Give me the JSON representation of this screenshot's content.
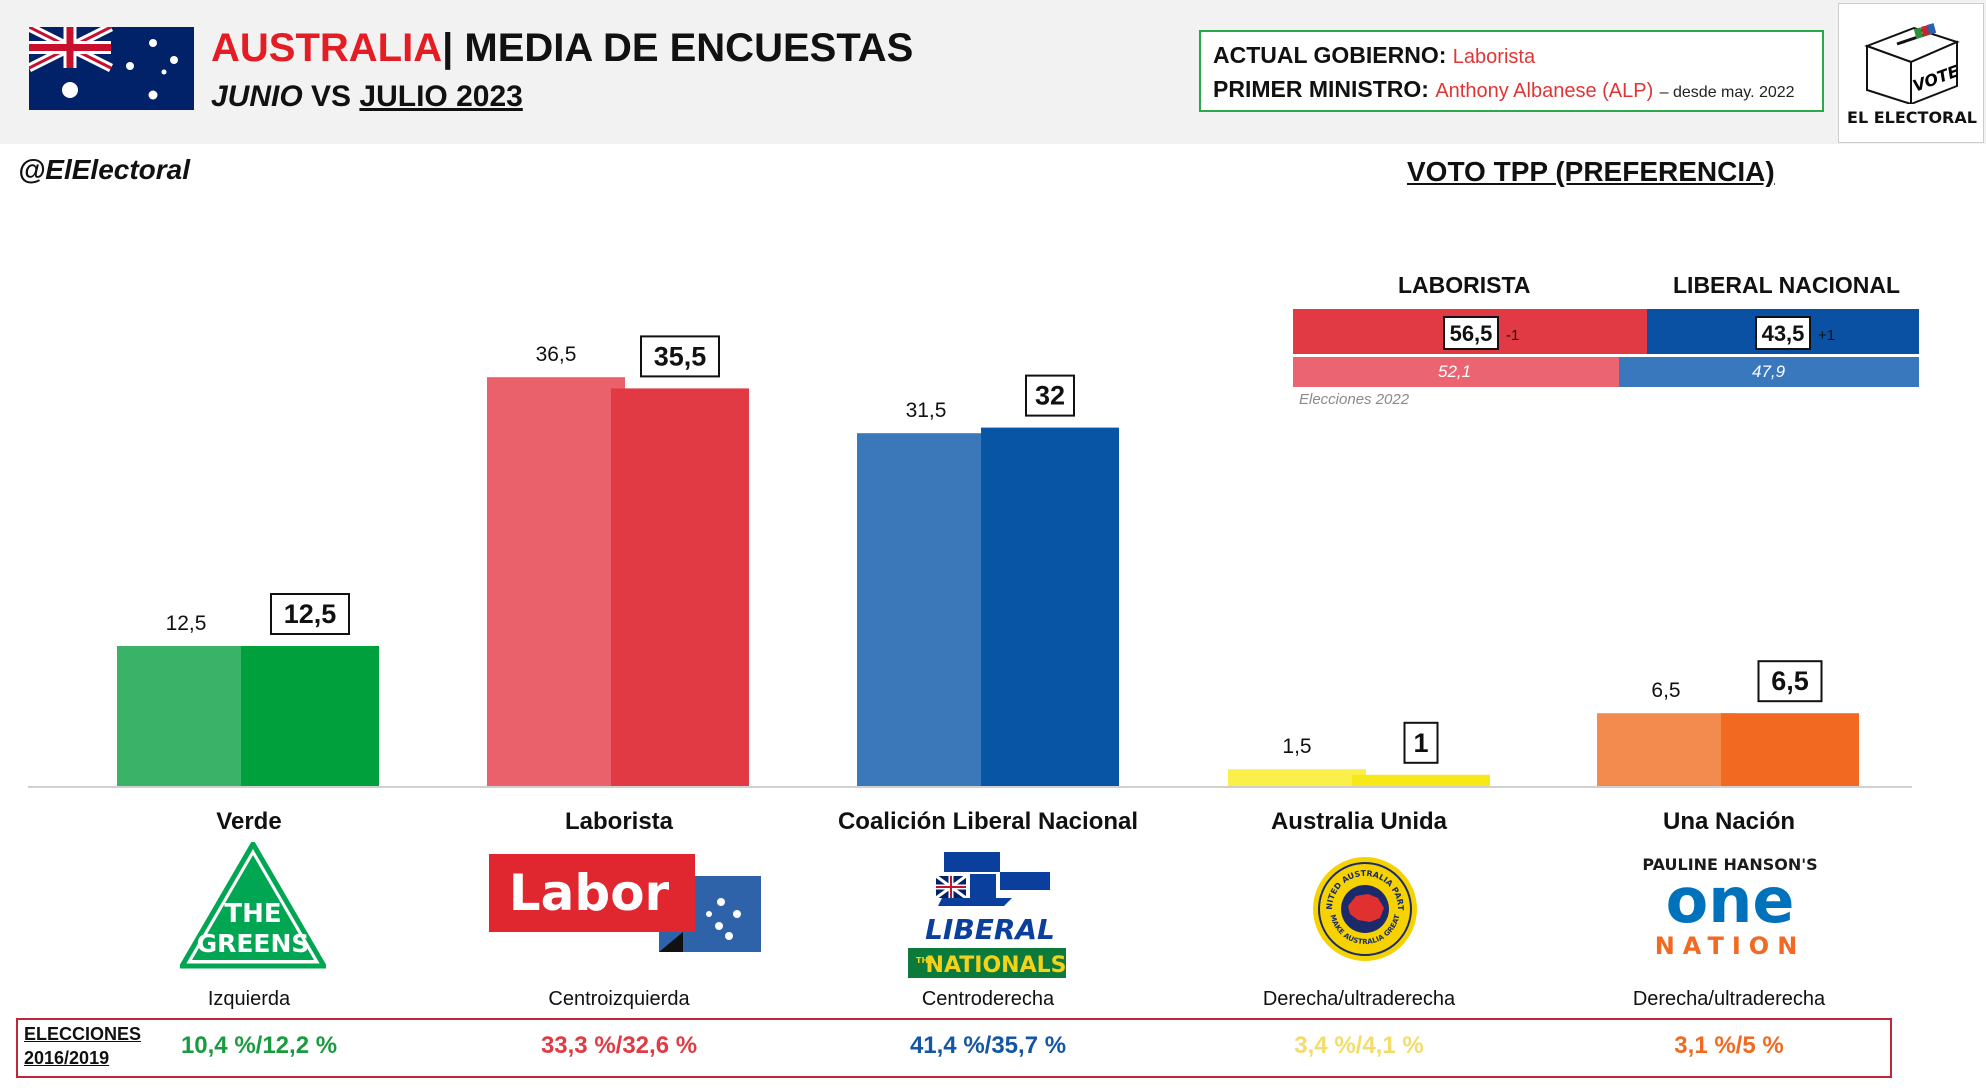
{
  "header": {
    "country": "AUSTRALIA",
    "separator": "|",
    "title": "MEDIA DE ENCUESTAS",
    "sub_from": "JUNIO",
    "sub_vs": "VS",
    "sub_to": "JULIO 2023"
  },
  "government": {
    "label1": "ACTUAL GOBIERNO:",
    "value1": "Laborista",
    "label2": "PRIMER MINISTRO:",
    "value2": "Anthony Albanese (ALP)",
    "since": "– desde may. 2022"
  },
  "logo": {
    "vote_text": "VOTE",
    "brand": "EL ELECTORAL"
  },
  "handle": "@ElElectoral",
  "tpp": {
    "title": "VOTO TPP (PREFERENCIA)",
    "left_label": "LABORISTA",
    "right_label": "LIBERAL NACIONAL",
    "left_value": "56,5",
    "left_change": "-1",
    "right_value": "43,5",
    "right_change": "+1",
    "prev_left": "52,1",
    "prev_right": "47,9",
    "prev_note": "Elecciones 2022",
    "left_color": "#e23a44",
    "right_color": "#0a51a3",
    "prev_left_color": "#ea6571",
    "prev_right_color": "#3a78bd"
  },
  "chart_data": {
    "type": "bar",
    "categories": [
      "Verde",
      "Laborista",
      "Coalición Liberal Nacional",
      "Australia Unida",
      "Una Nación"
    ],
    "series": [
      {
        "name": "JUNIO",
        "values": [
          12.5,
          36.5,
          31.5,
          1.5,
          6.5
        ],
        "labels": [
          "12,5",
          "36,5",
          "31,5",
          "1,5",
          "6,5"
        ]
      },
      {
        "name": "JULIO 2023",
        "values": [
          12.5,
          35.5,
          32,
          1,
          6.5
        ],
        "labels": [
          "12,5",
          "35,5",
          "32",
          "1",
          "6,5"
        ]
      }
    ],
    "colors_june": [
      "#3ab368",
      "#ea616b",
      "#3a78ba",
      "#fbf04a",
      "#f38b4e"
    ],
    "colors_july": [
      "#00a03c",
      "#e23a44",
      "#0855a5",
      "#f7e918",
      "#f26a21"
    ],
    "ylim": [
      0,
      40
    ],
    "grid": false,
    "legend": "none"
  },
  "parties": [
    {
      "name": "Verde",
      "ideology": "Izquierda",
      "logo": "greens-logo",
      "elections": "10,4 %/12,2 %",
      "color": "#1a9c3e"
    },
    {
      "name": "Laborista",
      "ideology": "Centroizquierda",
      "logo": "labor-logo",
      "elections": "33,3 %/32,6 %",
      "color": "#e23a44"
    },
    {
      "name": "Coalición Liberal Nacional",
      "ideology": "Centroderecha",
      "logo": "liberal-nationals-logo",
      "elections": "41,4 %/35,7 %",
      "color": "#1556a4"
    },
    {
      "name": "Australia Unida",
      "ideology": "Derecha/ultraderecha",
      "logo": "united-australia-logo",
      "elections": "3,4 %/4,1 %",
      "color": "#f3dd6a"
    },
    {
      "name": "Una Nación",
      "ideology": "Derecha/ultraderecha",
      "logo": "one-nation-logo",
      "elections": "3,1 %/5 %",
      "color": "#f26a21"
    }
  ],
  "logo_text": {
    "greens_1": "THE",
    "greens_2": "GREENS",
    "labor": "Labor",
    "liberal": "LIBERAL",
    "nationals": "NATIONALS",
    "the": "THE",
    "uap_top": "UNITED AUSTRALIA PARTY",
    "uap_bottom": "MAKE AUSTRALIA GREAT",
    "on_top": "PAULINE HANSON'S",
    "on_mid": "one",
    "on_bottom": "NATION"
  },
  "elections_label_1": "ELECCIONES",
  "elections_label_2": "2016/2019"
}
